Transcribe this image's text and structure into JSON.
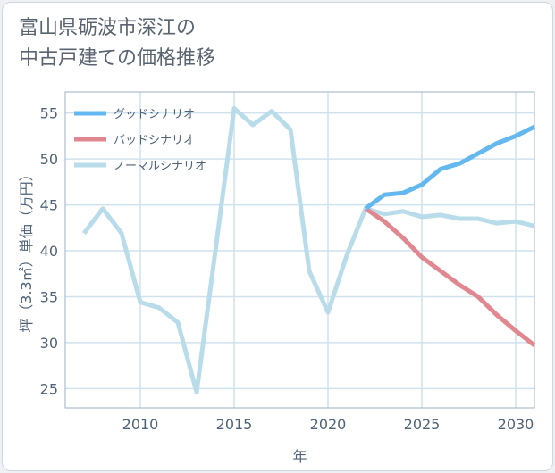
{
  "title_lines": [
    "富山県砺波市深江の",
    "中古戸建ての価格推移"
  ],
  "chart_data": {
    "type": "line",
    "title": "富山県砺波市深江の中古戸建ての価格推移",
    "xlabel": "年",
    "ylabel": "坪（3.3㎡）単価（万円）",
    "xlim": [
      2006,
      2031
    ],
    "ylim": [
      22.9,
      57.3
    ],
    "xticks": [
      2010,
      2015,
      2020,
      2025,
      2030
    ],
    "yticks": [
      25,
      30,
      35,
      40,
      45,
      50,
      55
    ],
    "grid": true,
    "legend_position": "top-left",
    "series": [
      {
        "name": "グッドシナリオ",
        "color": "#63b8f0",
        "x": [
          2022,
          2023,
          2024,
          2025,
          2026,
          2027,
          2028,
          2029,
          2030,
          2031
        ],
        "values": [
          44.6,
          46.1,
          46.3,
          47.2,
          48.9,
          49.5,
          50.6,
          51.7,
          52.5,
          53.5
        ]
      },
      {
        "name": "バッドシナリオ",
        "color": "#e0878f",
        "x": [
          2022,
          2023,
          2024,
          2025,
          2026,
          2027,
          2028,
          2029,
          2030,
          2031
        ],
        "values": [
          44.6,
          43.2,
          41.4,
          39.3,
          37.8,
          36.3,
          35.0,
          33.0,
          31.3,
          29.7
        ]
      },
      {
        "name": "ノーマルシナリオ",
        "color": "#b9dcea",
        "x": [
          2007,
          2008,
          2009,
          2010,
          2011,
          2012,
          2013,
          2014,
          2015,
          2016,
          2017,
          2018,
          2019,
          2020,
          2021,
          2022,
          2023,
          2024,
          2025,
          2026,
          2027,
          2028,
          2029,
          2030,
          2031
        ],
        "values": [
          41.9,
          44.6,
          41.9,
          34.4,
          33.8,
          32.2,
          24.6,
          40.0,
          55.5,
          53.7,
          55.2,
          53.2,
          37.8,
          33.3,
          39.5,
          44.6,
          44.0,
          44.3,
          43.7,
          43.9,
          43.5,
          43.5,
          43.0,
          43.2,
          42.7
        ]
      }
    ]
  }
}
